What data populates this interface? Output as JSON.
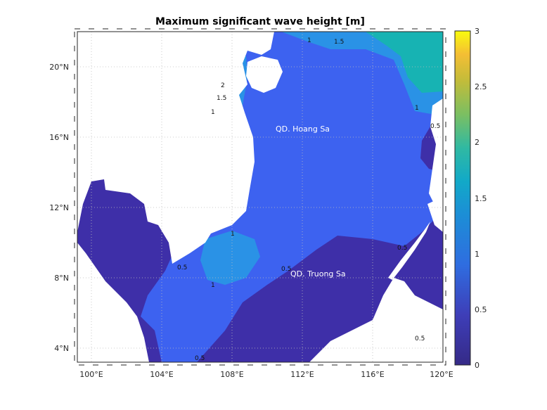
{
  "title": "Maximum significant wave height [m]",
  "axes": {
    "x_ticks": [
      "100°E",
      "104°E",
      "108°E",
      "112°E",
      "116°E",
      "120°E"
    ],
    "y_ticks": [
      "20°N",
      "16°N",
      "12°N",
      "8°N",
      "4°N"
    ]
  },
  "colorbar": {
    "ticks": [
      "3",
      "2.5",
      "2",
      "1.5",
      "1",
      "0.5",
      "0"
    ],
    "colormap": "parula",
    "range": [
      0,
      3
    ]
  },
  "places": {
    "hoang_sa": "QD. Hoang Sa",
    "truong_sa": "QD. Truong Sa"
  },
  "contour_labels": {
    "v05": "0.5",
    "v1": "1",
    "v15": "1.5",
    "v2": "2"
  },
  "colors": {
    "level_0_05": "#3e2fa8",
    "level_05_1": "#3d62f0",
    "level_1_15": "#2a92e6",
    "level_15_2": "#17b3b3",
    "level_2_25": "#7cc84a",
    "land": "#ffffff"
  }
}
